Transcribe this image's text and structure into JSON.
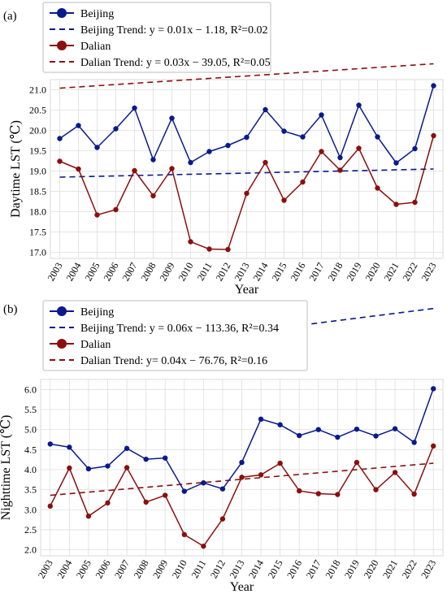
{
  "chart_data": [
    {
      "type": "line",
      "panel_label": "(a)",
      "xlabel": "Year",
      "ylabel": "Daytime LST (℃)",
      "categories": [
        "2003",
        "2004",
        "2005",
        "2006",
        "2007",
        "2008",
        "2009",
        "2010",
        "2011",
        "2012",
        "2013",
        "2014",
        "2015",
        "2016",
        "2017",
        "2018",
        "2019",
        "2020",
        "2021",
        "2022",
        "2023"
      ],
      "yticks": [
        "17.0",
        "17.5",
        "18.0",
        "18.5",
        "19.0",
        "19.5",
        "20.0",
        "20.5",
        "21.0"
      ],
      "ylim": [
        16.85,
        21.25
      ],
      "grid": true,
      "legend_placement": "top-left",
      "series": [
        {
          "name": "Beijing",
          "color": "#0a1a8c",
          "values": [
            19.8,
            20.12,
            19.58,
            20.04,
            20.55,
            19.28,
            20.3,
            19.21,
            19.48,
            19.63,
            19.83,
            20.51,
            19.98,
            19.84,
            20.38,
            19.33,
            20.62,
            19.84,
            19.2,
            19.55,
            21.1
          ]
        },
        {
          "name": "Dalian",
          "color": "#8b0f0f",
          "values": [
            19.24,
            19.05,
            17.92,
            18.05,
            19.01,
            18.39,
            19.06,
            17.26,
            17.08,
            17.07,
            18.45,
            19.21,
            18.28,
            18.73,
            19.48,
            19.02,
            19.56,
            18.58,
            18.18,
            18.23,
            19.87
          ]
        }
      ],
      "trends": [
        {
          "name": "Beijing Trend: y = 0.01x − 1.18, R²=0.02",
          "color": "#0a1a8c",
          "slope": 0.01,
          "intercept": -1.18
        },
        {
          "name": "Dalian Trend: y = 0.03x − 39.05, R²=0.05",
          "color": "#8b0f0f",
          "slope": 0.03,
          "intercept": -39.05
        }
      ]
    },
    {
      "type": "line",
      "panel_label": "(b)",
      "xlabel": "Year",
      "ylabel": "Nighttime LST (℃)",
      "categories": [
        "2003",
        "2004",
        "2005",
        "2006",
        "2007",
        "2008",
        "2009",
        "2010",
        "2011",
        "2012",
        "2013",
        "2014",
        "2015",
        "2016",
        "2017",
        "2018",
        "2019",
        "2020",
        "2021",
        "2022",
        "2023"
      ],
      "yticks": [
        "2.0",
        "2.5",
        "3.0",
        "3.5",
        "4.0",
        "4.5",
        "5.0",
        "5.5",
        "6.0"
      ],
      "ylim": [
        1.85,
        6.25
      ],
      "grid": true,
      "legend_placement": "top-left",
      "series": [
        {
          "name": "Beijing",
          "color": "#0a1a8c",
          "values": [
            4.64,
            4.56,
            4.02,
            4.09,
            4.53,
            4.26,
            4.29,
            3.46,
            3.67,
            3.52,
            4.18,
            5.26,
            5.12,
            4.85,
            5.0,
            4.81,
            5.01,
            4.84,
            5.02,
            4.68,
            6.02
          ]
        },
        {
          "name": "Dalian",
          "color": "#8b0f0f",
          "values": [
            3.09,
            4.04,
            2.84,
            3.17,
            4.05,
            3.19,
            3.36,
            2.38,
            2.09,
            2.77,
            3.81,
            3.87,
            4.16,
            3.47,
            3.4,
            3.38,
            4.18,
            3.5,
            3.93,
            3.39,
            4.59
          ]
        }
      ],
      "trends": [
        {
          "name": "Beijing Trend: y = 0.06x − 113.36, R²=0.34",
          "color": "#0a1a8c",
          "slope": 0.06,
          "intercept": -113.36
        },
        {
          "name": "Dalian Trend: y= 0.04x − 76.76, R²=0.16",
          "color": "#8b0f0f",
          "slope": 0.04,
          "intercept": -76.76
        }
      ]
    }
  ]
}
